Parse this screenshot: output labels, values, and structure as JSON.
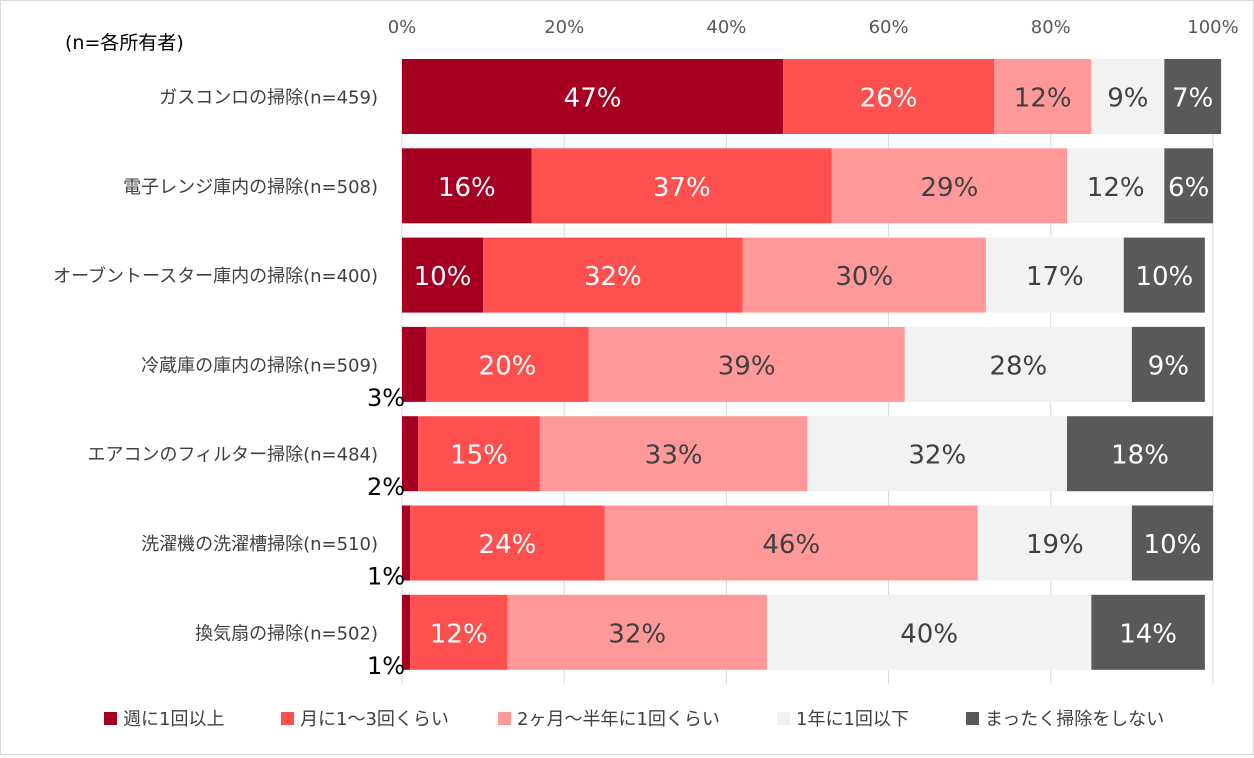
{
  "chart_data": {
    "type": "bar",
    "orientation": "horizontal",
    "stacked": true,
    "note": "(n=各所有者)",
    "categories": [
      "ガスコンロの掃除(n=459)",
      "電子レンジ庫内の掃除(n=508)",
      "オーブントースター庫内の掃除(n=400)",
      "冷蔵庫の庫内の掃除(n=509)",
      "エアコンのフィルター掃除(n=484)",
      "洗濯機の洗濯槽掃除(n=510)",
      "換気扇の掃除(n=502)"
    ],
    "series": [
      {
        "name": "週に1回以上",
        "color": "#a50021",
        "label_color": "#ffffff",
        "values": [
          47,
          16,
          10,
          3,
          2,
          1,
          1
        ]
      },
      {
        "name": "月に1～3回くらい",
        "color": "#ff5050",
        "label_color": "#ffffff",
        "values": [
          26,
          37,
          32,
          20,
          15,
          24,
          12
        ]
      },
      {
        "name": "2ヶ月～半年に1回くらい",
        "color": "#ff9999",
        "label_color": "#404040",
        "values": [
          12,
          29,
          30,
          39,
          33,
          46,
          32
        ]
      },
      {
        "name": "1年に1回以下",
        "color": "#f2f2f2",
        "label_color": "#404040",
        "values": [
          9,
          12,
          17,
          28,
          32,
          19,
          40
        ]
      },
      {
        "name": "まったく掃除をしない",
        "color": "#595959",
        "label_color": "#ffffff",
        "values": [
          7,
          6,
          10,
          9,
          18,
          10,
          14
        ]
      }
    ],
    "xlim": [
      0,
      100
    ],
    "x_ticks": [
      "0%",
      "20%",
      "40%",
      "60%",
      "80%",
      "100%"
    ],
    "x_tick_values": [
      0,
      20,
      40,
      60,
      80,
      100
    ],
    "value_suffix": "%",
    "grid": true,
    "legend_position": "bottom"
  }
}
